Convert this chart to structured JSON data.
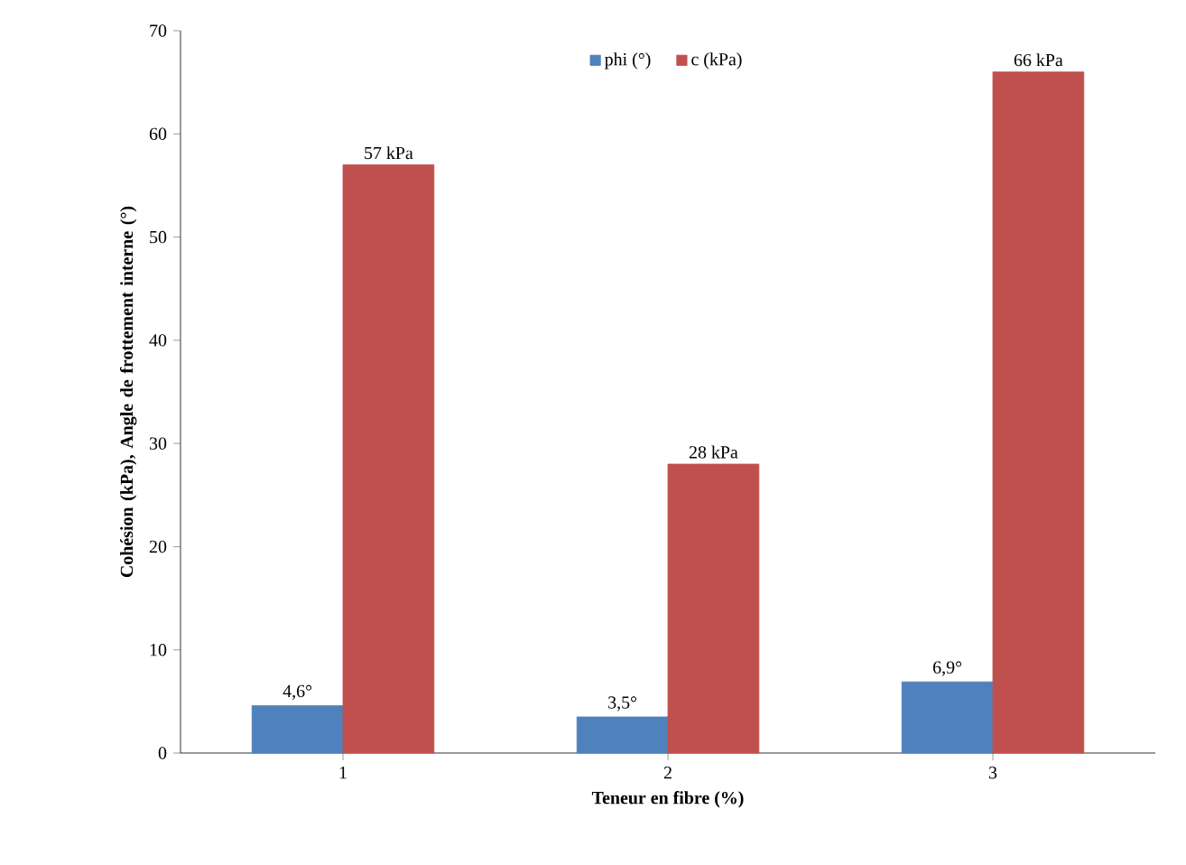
{
  "chart_data": {
    "type": "bar",
    "xlabel": "Teneur en fibre (%)",
    "ylabel": "Cohésion (kPa), Angle de frottement interne (°)",
    "categories": [
      "1",
      "2",
      "3"
    ],
    "series": [
      {
        "name": "phi (°)",
        "color": "#4f81bd",
        "values": [
          4.6,
          3.5,
          6.9
        ],
        "value_labels": [
          "4,6°",
          "3,5°",
          "6,9°"
        ]
      },
      {
        "name": "c (kPa)",
        "color": "#c0504d",
        "values": [
          57,
          28,
          66
        ],
        "value_labels": [
          "57 kPa",
          "28 kPa",
          "66 kPa"
        ]
      }
    ],
    "ylim": [
      0,
      70
    ],
    "yticks": [
      0,
      10,
      20,
      30,
      40,
      50,
      60,
      70
    ],
    "legend": "top"
  }
}
